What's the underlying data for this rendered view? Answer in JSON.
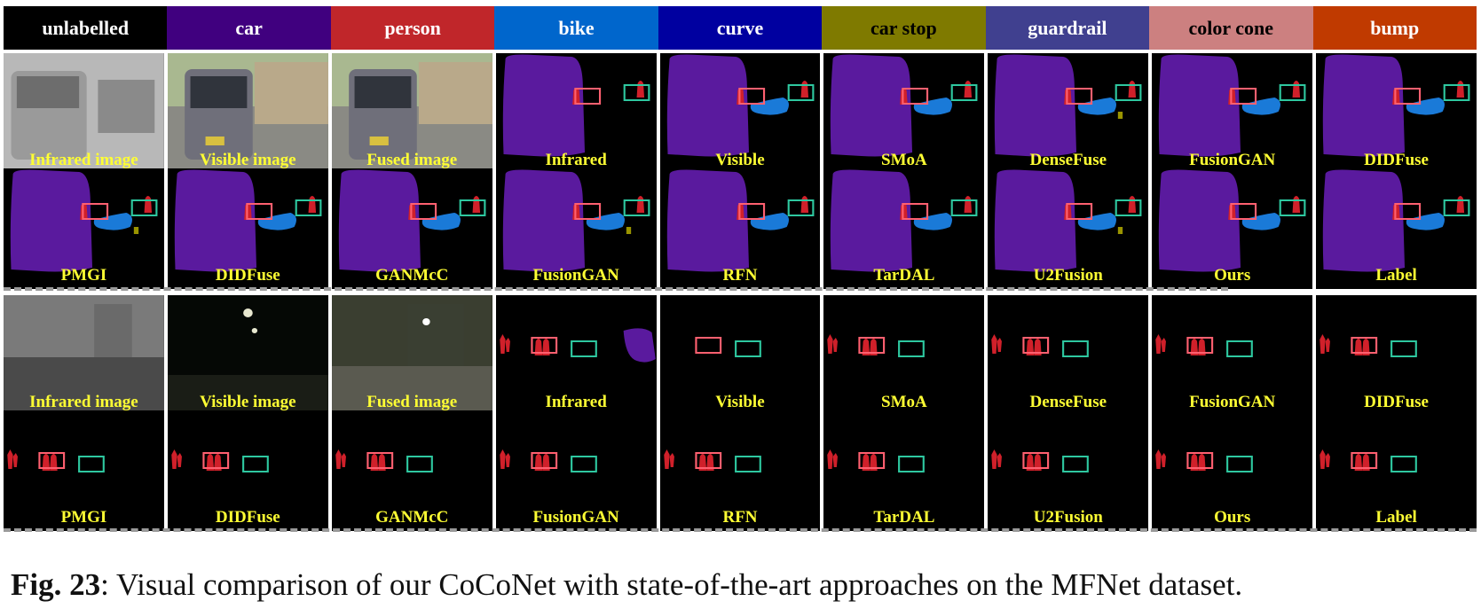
{
  "legend": [
    {
      "label": "unlabelled",
      "bg": "#000000",
      "fg": "#ffffff"
    },
    {
      "label": "car",
      "bg": "#40007f",
      "fg": "#ffffff"
    },
    {
      "label": "person",
      "bg": "#c0262a",
      "fg": "#ffffff"
    },
    {
      "label": "bike",
      "bg": "#0066cc",
      "fg": "#ffffff"
    },
    {
      "label": "curve",
      "bg": "#0000a0",
      "fg": "#ffffff"
    },
    {
      "label": "car stop",
      "bg": "#7f7a00",
      "fg": "#000000"
    },
    {
      "label": "guardrail",
      "bg": "#40408f",
      "fg": "#ffffff"
    },
    {
      "label": "color cone",
      "bg": "#cc8080",
      "fg": "#000000"
    },
    {
      "label": "bump",
      "bg": "#c03a00",
      "fg": "#ffffff"
    }
  ],
  "scene1": {
    "row1": [
      "Infrared image",
      "Visible image",
      "Fused image",
      "Infrared",
      "Visible",
      "SMoA",
      "DenseFuse",
      "FusionGAN",
      "DIDFuse"
    ],
    "row2": [
      "PMGI",
      "DIDFuse",
      "GANMcC",
      "FusionGAN",
      "RFN",
      "TarDAL",
      "U2Fusion",
      "Ours",
      "Label"
    ]
  },
  "scene2": {
    "row1": [
      "Infrared image",
      "Visible image",
      "Fused image",
      "Infrared",
      "Visible",
      "SMoA",
      "DenseFuse",
      "FusionGAN",
      "DIDFuse"
    ],
    "row2": [
      "PMGI",
      "DIDFuse",
      "GANMcC",
      "FusionGAN",
      "RFN",
      "TarDAL",
      "U2Fusion",
      "Ours",
      "Label"
    ]
  },
  "caption": {
    "label": "Fig. 23",
    "text": ": Visual comparison of our CoCoNet with state-of-the-art approaches on the MFNet dataset."
  },
  "colors": {
    "car": "#5a1a9e",
    "person": "#d0202a",
    "bike": "#1a7ad8",
    "car_stop": "#9a9400",
    "box_red": "#ff6070",
    "box_green": "#2ec8a0",
    "caption_fill": "#ffff33"
  }
}
